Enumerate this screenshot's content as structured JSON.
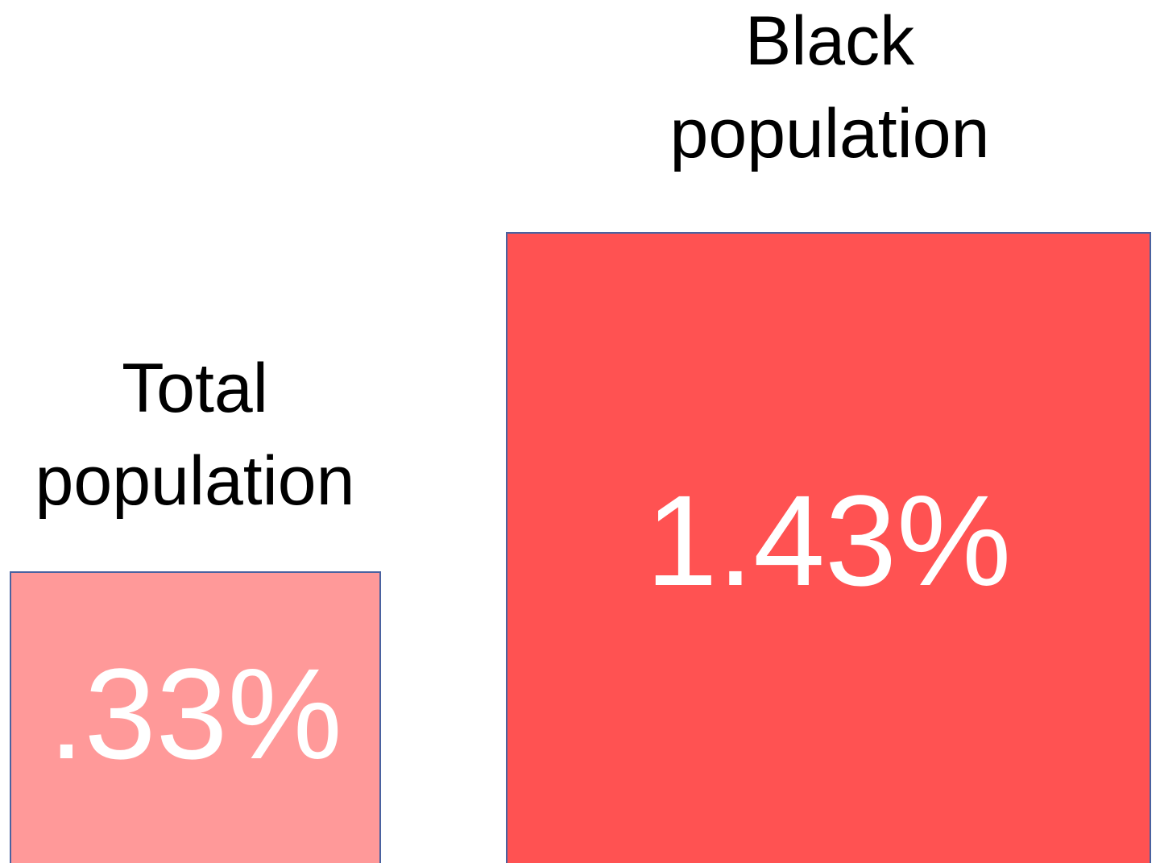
{
  "groups": [
    {
      "label": "Total population",
      "value": ".33%"
    },
    {
      "label": "Black population",
      "value": "1.43%"
    }
  ]
}
